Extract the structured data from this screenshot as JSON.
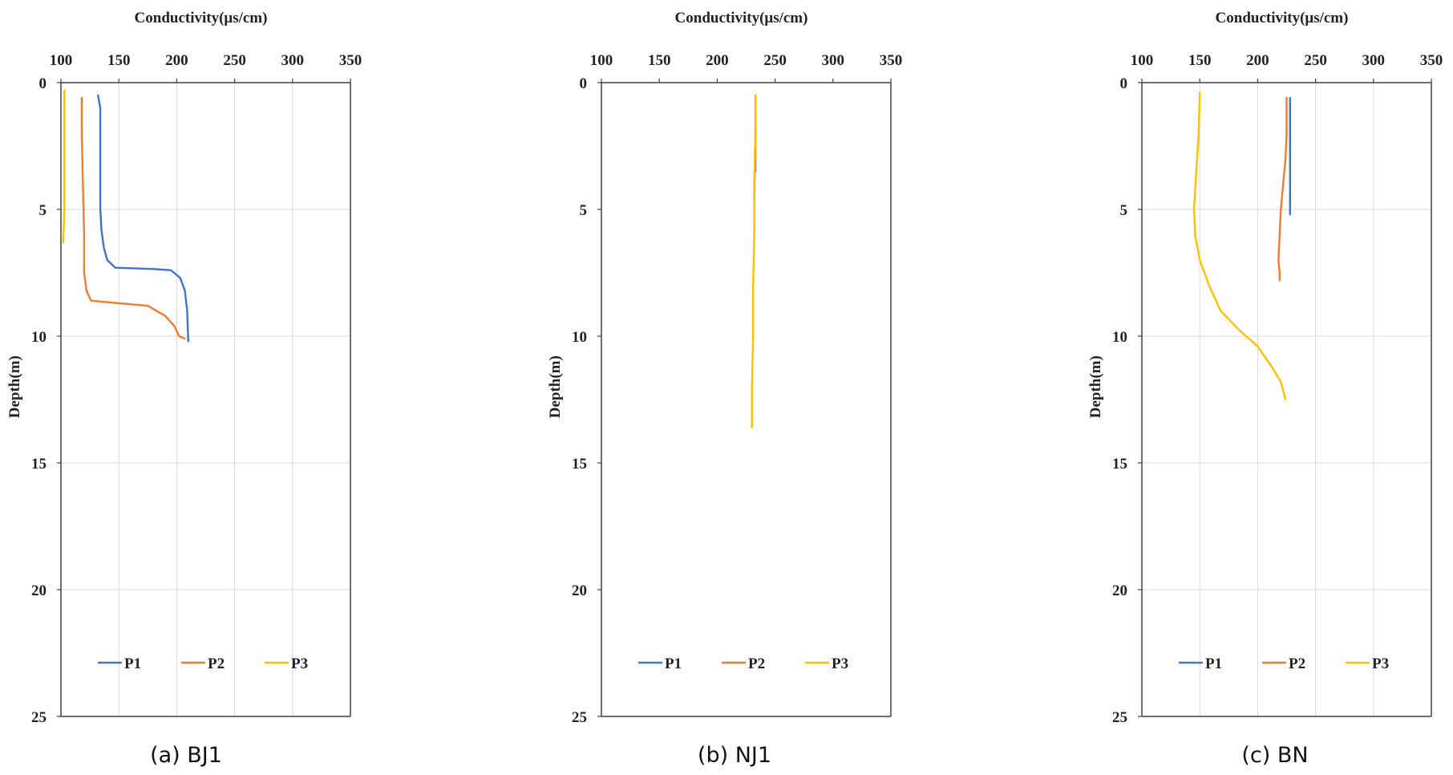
{
  "colors": {
    "P1": "#4472C4",
    "P2": "#ED7D31",
    "P3": "#FFC000",
    "grid": "#d9d9d9",
    "axis": "#404040"
  },
  "chart_data": [
    {
      "type": "line",
      "caption": "(a) BJ1",
      "xlabel": "Conductivity(μs/cm)",
      "ylabel": "Depth(m)",
      "xlim": [
        100,
        350
      ],
      "ylim": [
        0,
        25
      ],
      "x_ticks": [
        "100",
        "150",
        "200",
        "250",
        "300",
        "350"
      ],
      "y_ticks": [
        "0",
        "5",
        "10",
        "15",
        "20",
        "25"
      ],
      "y_reversed": true,
      "grid": true,
      "legend_position": "bottom",
      "legend": [
        "P1",
        "P2",
        "P3"
      ],
      "series": [
        {
          "name": "P1",
          "points": [
            [
              132,
              0.5
            ],
            [
              134,
              1
            ],
            [
              134,
              2
            ],
            [
              134,
              3
            ],
            [
              134,
              4
            ],
            [
              134,
              5
            ],
            [
              135,
              5.8
            ],
            [
              137,
              6.5
            ],
            [
              140,
              7
            ],
            [
              147,
              7.3
            ],
            [
              180,
              7.35
            ],
            [
              195,
              7.4
            ],
            [
              203,
              7.7
            ],
            [
              207,
              8.2
            ],
            [
              209,
              9
            ],
            [
              210,
              10.2
            ]
          ]
        },
        {
          "name": "P2",
          "points": [
            [
              118,
              0.6
            ],
            [
              118,
              2
            ],
            [
              119,
              4
            ],
            [
              120,
              6
            ],
            [
              120,
              7.5
            ],
            [
              122,
              8.2
            ],
            [
              126,
              8.6
            ],
            [
              150,
              8.7
            ],
            [
              175,
              8.8
            ],
            [
              190,
              9.2
            ],
            [
              198,
              9.6
            ],
            [
              202,
              10
            ],
            [
              207,
              10.1
            ]
          ]
        },
        {
          "name": "P3",
          "points": [
            [
              103,
              0.3
            ],
            [
              103,
              1
            ],
            [
              103,
              2
            ],
            [
              103,
              3
            ],
            [
              103,
              4
            ],
            [
              103,
              5
            ],
            [
              102,
              6.3
            ]
          ]
        }
      ]
    },
    {
      "type": "line",
      "caption": "(b) NJ1",
      "xlabel": "Conductivity(μs/cm)",
      "ylabel": "Depth(m)",
      "xlim": [
        100,
        350
      ],
      "ylim": [
        0,
        25
      ],
      "x_ticks": [
        "100",
        "150",
        "200",
        "250",
        "300",
        "350"
      ],
      "y_ticks": [
        "0",
        "5",
        "10",
        "15",
        "20",
        "25"
      ],
      "y_reversed": true,
      "grid": false,
      "legend_position": "bottom",
      "legend": [
        "P1",
        "P2",
        "P3"
      ],
      "series": [
        {
          "name": "P1",
          "points": [
            [
              233,
              0.5
            ],
            [
              233,
              1.5
            ],
            [
              233,
              2.5
            ],
            [
              233,
              3.5
            ]
          ]
        },
        {
          "name": "P2",
          "points": [
            [
              233,
              0.5
            ],
            [
              233,
              2
            ],
            [
              232,
              4.5
            ]
          ]
        },
        {
          "name": "P3",
          "points": [
            [
              233,
              0.5
            ],
            [
              233,
              2
            ],
            [
              232,
              4
            ],
            [
              232,
              6
            ],
            [
              231,
              8
            ],
            [
              231,
              10
            ],
            [
              230,
              12
            ],
            [
              230,
              13.6
            ]
          ]
        }
      ]
    },
    {
      "type": "line",
      "caption": "(c) BN",
      "xlabel": "Conductivity(μs/cm)",
      "ylabel": "Depth(m)",
      "xlim": [
        100,
        350
      ],
      "ylim": [
        0,
        25
      ],
      "x_ticks": [
        "100",
        "150",
        "200",
        "250",
        "300",
        "350"
      ],
      "y_ticks": [
        "0",
        "5",
        "10",
        "15",
        "20",
        "25"
      ],
      "y_reversed": true,
      "grid": true,
      "legend_position": "bottom",
      "legend": [
        "P1",
        "P2",
        "P3"
      ],
      "series": [
        {
          "name": "P1",
          "points": [
            [
              228,
              0.6
            ],
            [
              228,
              2
            ],
            [
              228,
              4
            ],
            [
              228,
              5.2
            ]
          ]
        },
        {
          "name": "P2",
          "points": [
            [
              225,
              0.6
            ],
            [
              225,
              2
            ],
            [
              224,
              3
            ],
            [
              222,
              4
            ],
            [
              220,
              5
            ],
            [
              219,
              6
            ],
            [
              218,
              7
            ],
            [
              219,
              7.5
            ],
            [
              219,
              7.8
            ]
          ]
        },
        {
          "name": "P3",
          "points": [
            [
              150,
              0.4
            ],
            [
              149,
              2
            ],
            [
              147,
              3.5
            ],
            [
              145,
              5
            ],
            [
              146,
              6
            ],
            [
              150,
              7
            ],
            [
              158,
              8
            ],
            [
              168,
              9
            ],
            [
              185,
              9.8
            ],
            [
              200,
              10.4
            ],
            [
              212,
              11.2
            ],
            [
              220,
              11.8
            ],
            [
              224,
              12.5
            ]
          ]
        }
      ]
    }
  ]
}
